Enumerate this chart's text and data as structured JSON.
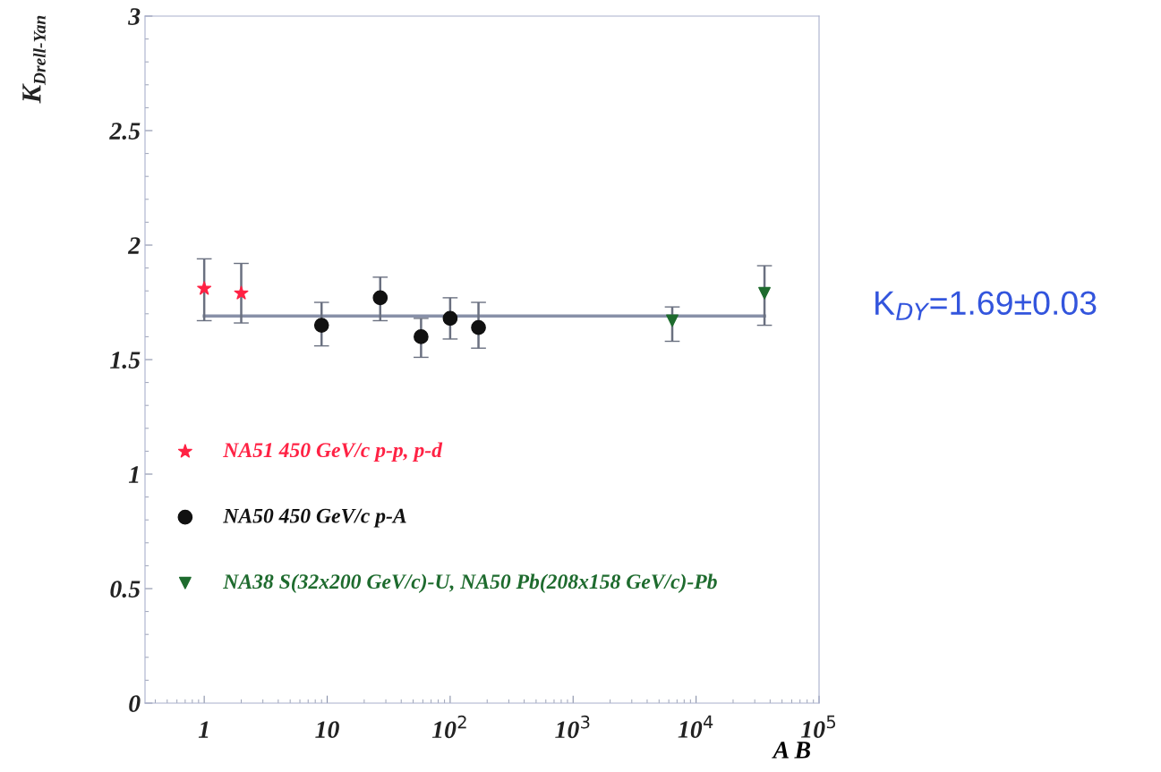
{
  "chart_data": {
    "type": "scatter",
    "ylabel": "K$_{Drell-Yan}$",
    "xlabel": "A B",
    "log": "x",
    "xlim": [
      0.33,
      100000
    ],
    "ylim": [
      0,
      3
    ],
    "xticks": [
      1,
      10,
      {
        "value": 100,
        "label": "10$^{2}$"
      },
      {
        "value": 1000,
        "label": "10$^{3}$"
      },
      {
        "value": 10000,
        "label": "10$^{4}$"
      },
      {
        "value": 100000,
        "label": "10$^{5}$"
      }
    ],
    "yticks": [
      0,
      0.5,
      1,
      1.5,
      2,
      2.5,
      3
    ],
    "legend": "left",
    "grid": false,
    "series": [
      {
        "name": "NA51 450 GeV/c p-p, p-d",
        "color": "#ff2244",
        "marker": "star",
        "x": [
          1,
          2
        ],
        "values": [
          1.81,
          1.79
        ],
        "errors": [
          [
            1.67,
            1.94
          ],
          [
            1.66,
            1.92
          ]
        ]
      },
      {
        "name": "NA50 450 GeV/c p-A",
        "color": "#111111",
        "marker": "circle",
        "x": [
          9,
          27,
          58,
          100,
          170
        ],
        "values": [
          1.65,
          1.77,
          1.6,
          1.68,
          1.64
        ],
        "errors": [
          [
            1.56,
            1.75
          ],
          [
            1.67,
            1.86
          ],
          [
            1.51,
            1.68
          ],
          [
            1.59,
            1.77
          ],
          [
            1.55,
            1.75
          ]
        ]
      },
      {
        "name": "NA38 S(32x200 GeV/c)-U, NA50 Pb(208x158 GeV/c)-Pb",
        "color": "#1e6b2e",
        "marker": "triangle",
        "x": [
          6400,
          36000
        ],
        "values": [
          1.67,
          1.79
        ],
        "errors": [
          [
            1.58,
            1.73
          ],
          [
            1.65,
            1.91
          ]
        ]
      },
      {
        "type": "line",
        "color": "#8890a8",
        "x": [
          1,
          36000
        ],
        "values": [
          1.69,
          1.69
        ]
      }
    ],
    "annotations": [
      "K$_{DY}$=1.69±0.03"
    ]
  }
}
